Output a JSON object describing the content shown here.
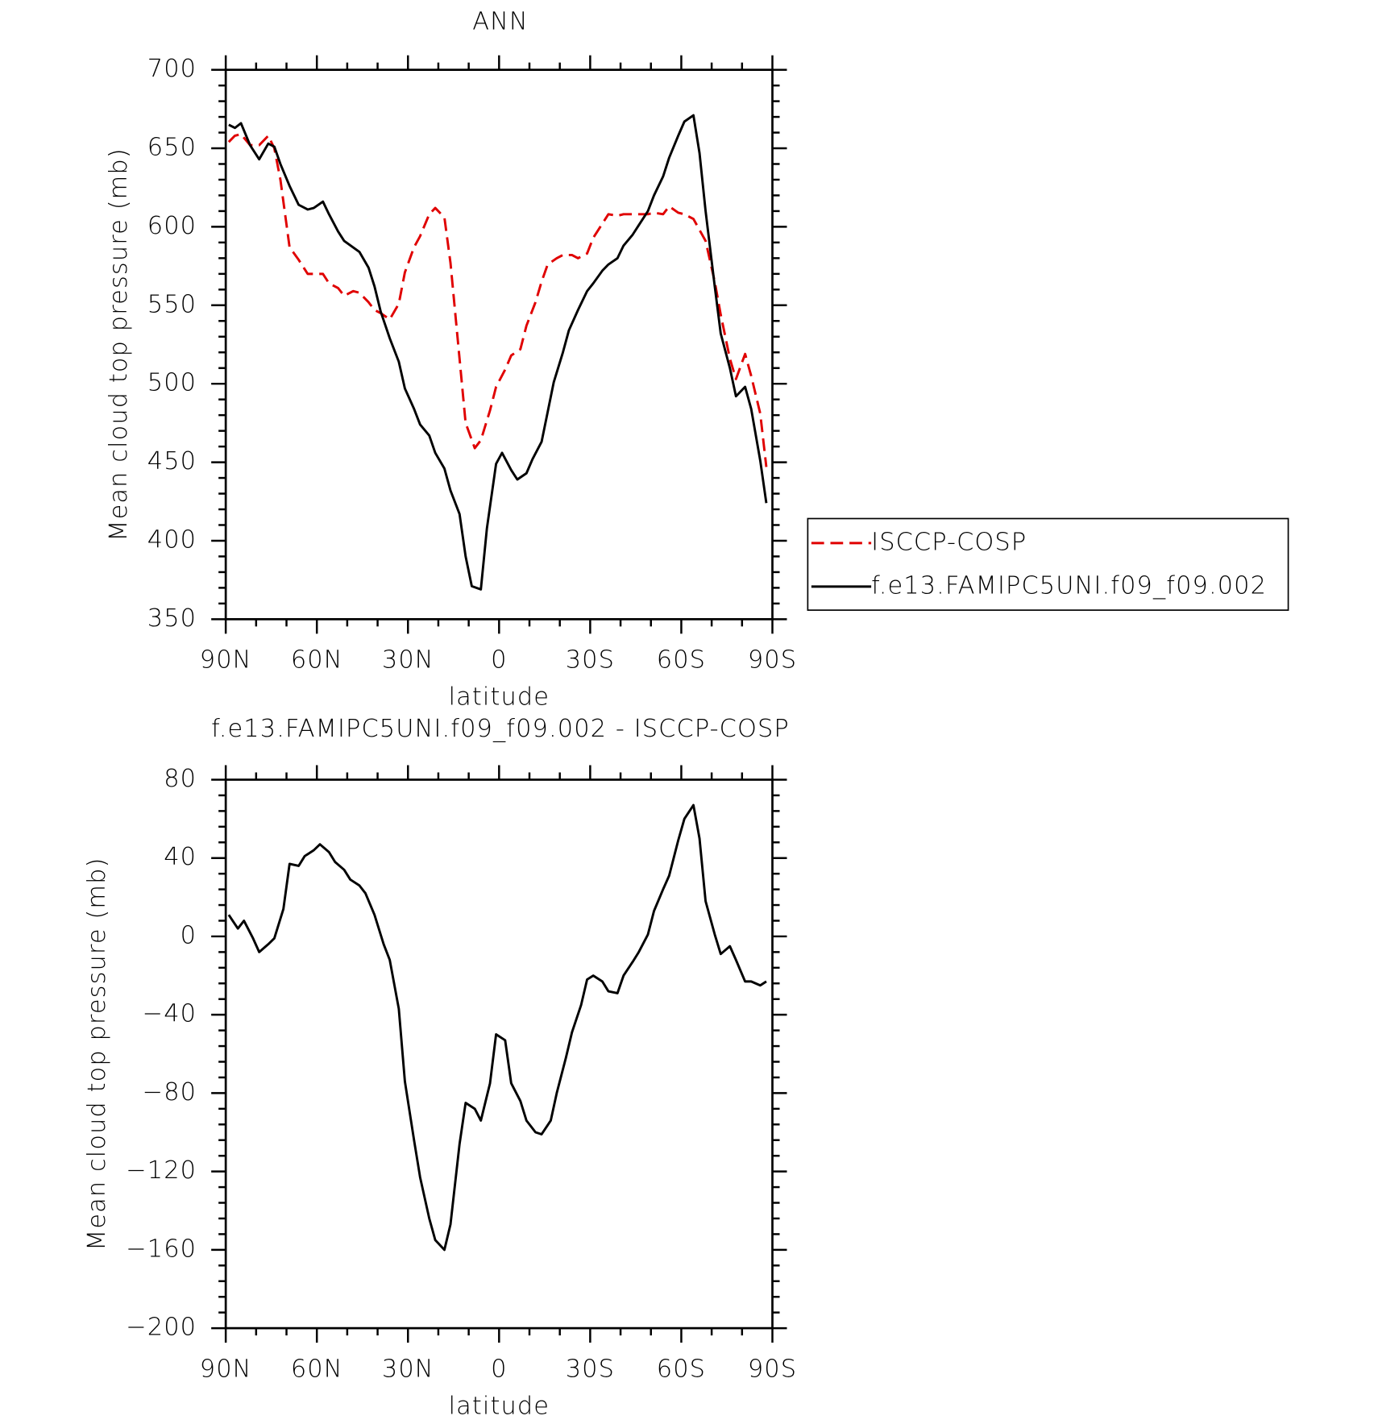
{
  "chart_data": [
    {
      "type": "line",
      "title": "ANN",
      "xlabel": "latitude",
      "ylabel": "Mean cloud top pressure (mb)",
      "xlim": [
        90,
        -90
      ],
      "ylim": [
        350,
        700
      ],
      "xticks": [
        {
          "value": 90,
          "label": "90N"
        },
        {
          "value": 60,
          "label": "60N"
        },
        {
          "value": 30,
          "label": "30N"
        },
        0,
        {
          "value": -30,
          "label": "30S"
        },
        {
          "value": -60,
          "label": "60S"
        },
        {
          "value": -90,
          "label": "90S"
        }
      ],
      "yticks": [
        350,
        400,
        450,
        500,
        550,
        600,
        650,
        700
      ],
      "legend": "outside right",
      "series": [
        {
          "name": "ISCCP-COSP",
          "color": "#e00000",
          "linestyle": "dashed",
          "x": [
            89,
            87,
            85,
            82,
            79,
            76,
            74,
            72,
            69,
            66,
            63,
            61,
            58,
            56,
            53,
            51,
            48,
            46,
            43,
            41,
            39,
            36,
            33,
            31,
            28,
            26,
            23,
            21,
            18,
            16,
            13,
            11,
            8,
            6,
            3,
            1,
            -2,
            -4,
            -7,
            -9,
            -12,
            -14,
            -16,
            -19,
            -21,
            -24,
            -26,
            -29,
            -31,
            -34,
            -36,
            -39,
            -41,
            -44,
            -46,
            -49,
            -51,
            -54,
            -56,
            -59,
            -61,
            -64,
            -66,
            -68,
            -71,
            -73,
            -76,
            -78,
            -81,
            -83,
            -86,
            -88
          ],
          "values": [
            654,
            658,
            659,
            652,
            652,
            658,
            650,
            630,
            587,
            579,
            570,
            570,
            570,
            564,
            561,
            556,
            559,
            558,
            552,
            547,
            545,
            541,
            551,
            571,
            587,
            594,
            608,
            612,
            606,
            577,
            516,
            475,
            459,
            464,
            483,
            498,
            509,
            518,
            522,
            537,
            552,
            565,
            576,
            580,
            582,
            582,
            580,
            583,
            593,
            602,
            608,
            607,
            608,
            608,
            608,
            608,
            609,
            608,
            613,
            609,
            608,
            605,
            598,
            591,
            565,
            544,
            516,
            503,
            519,
            505,
            481,
            447
          ]
        },
        {
          "name": "f.e13.FAMIPC5UNI.f09_f09.002",
          "color": "#000000",
          "linestyle": "solid",
          "x": [
            89,
            87,
            85,
            82,
            79,
            76,
            74,
            72,
            69,
            66,
            63,
            61,
            58,
            56,
            53,
            51,
            46,
            43,
            41,
            39,
            36,
            33,
            31,
            28,
            26,
            23,
            21,
            18,
            16,
            13,
            11,
            9,
            6,
            4,
            1,
            -1,
            -4,
            -6,
            -9,
            -11,
            -14,
            -16,
            -18,
            -21,
            -23,
            -26,
            -29,
            -31,
            -34,
            -36,
            -39,
            -41,
            -44,
            -46,
            -49,
            -51,
            -54,
            -56,
            -59,
            -61,
            -64,
            -66,
            -68,
            -71,
            -73,
            -76,
            -78,
            -81,
            -83,
            -86,
            -88
          ],
          "values": [
            665,
            663,
            666,
            652,
            643,
            653,
            651,
            640,
            626,
            614,
            611,
            612,
            616,
            608,
            597,
            591,
            584,
            574,
            562,
            546,
            529,
            514,
            497,
            484,
            474,
            467,
            456,
            446,
            432,
            417,
            390,
            371,
            369,
            408,
            449,
            456,
            445,
            439,
            443,
            452,
            463,
            482,
            501,
            520,
            534,
            547,
            559,
            564,
            572,
            576,
            580,
            588,
            595,
            601,
            610,
            620,
            632,
            644,
            658,
            667,
            671,
            647,
            610,
            562,
            532,
            510,
            492,
            498,
            484,
            451,
            424
          ]
        }
      ]
    },
    {
      "type": "line",
      "title": "f.e13.FAMIPC5UNI.f09_f09.002 - ISCCP-COSP",
      "xlabel": "latitude",
      "ylabel": "Mean cloud top pressure (mb)",
      "xlim": [
        90,
        -90
      ],
      "ylim": [
        -200,
        80
      ],
      "xticks": [
        {
          "value": 90,
          "label": "90N"
        },
        {
          "value": 60,
          "label": "60N"
        },
        {
          "value": 30,
          "label": "30N"
        },
        0,
        {
          "value": -30,
          "label": "30S"
        },
        {
          "value": -60,
          "label": "60S"
        },
        {
          "value": -90,
          "label": "90S"
        }
      ],
      "yticks": [
        {
          "value": -200,
          "label": "−200"
        },
        {
          "value": -160,
          "label": "−160"
        },
        {
          "value": -120,
          "label": "−120"
        },
        {
          "value": -80,
          "label": "−80"
        },
        {
          "value": -40,
          "label": "−40"
        },
        0,
        40,
        80
      ],
      "series": [
        {
          "color": "#000000",
          "linestyle": "solid",
          "x": [
            89,
            86,
            84,
            81,
            79,
            76,
            74,
            71,
            69,
            66,
            64,
            61,
            59,
            56,
            54,
            51,
            49,
            46,
            44,
            41,
            38,
            36,
            33,
            31,
            28,
            26,
            23,
            21,
            18,
            16,
            13,
            11,
            8,
            6,
            3,
            1,
            -2,
            -4,
            -7,
            -9,
            -12,
            -14,
            -17,
            -19,
            -22,
            -24,
            -27,
            -29,
            -31,
            -34,
            -36,
            -39,
            -41,
            -44,
            -46,
            -49,
            -51,
            -54,
            -56,
            -59,
            -61,
            -64,
            -66,
            -68,
            -71,
            -73,
            -76,
            -78,
            -81,
            -83,
            -86,
            -88
          ],
          "values": [
            11,
            4,
            8,
            -1,
            -8,
            -4,
            -1,
            14,
            37,
            36,
            41,
            44,
            47,
            43,
            38,
            34,
            29,
            26,
            22,
            11,
            -4,
            -12,
            -37,
            -74,
            -104,
            -123,
            -144,
            -155,
            -160,
            -147,
            -106,
            -85,
            -88,
            -94,
            -75,
            -50,
            -53,
            -75,
            -84,
            -94,
            -100,
            -101,
            -94,
            -80,
            -62,
            -49,
            -35,
            -22,
            -20,
            -23,
            -28,
            -29,
            -20,
            -13,
            -8,
            1,
            13,
            24,
            31,
            49,
            60,
            67,
            50,
            18,
            1,
            -9,
            -5,
            -12,
            -23,
            -23,
            -25,
            -23
          ]
        }
      ]
    }
  ]
}
